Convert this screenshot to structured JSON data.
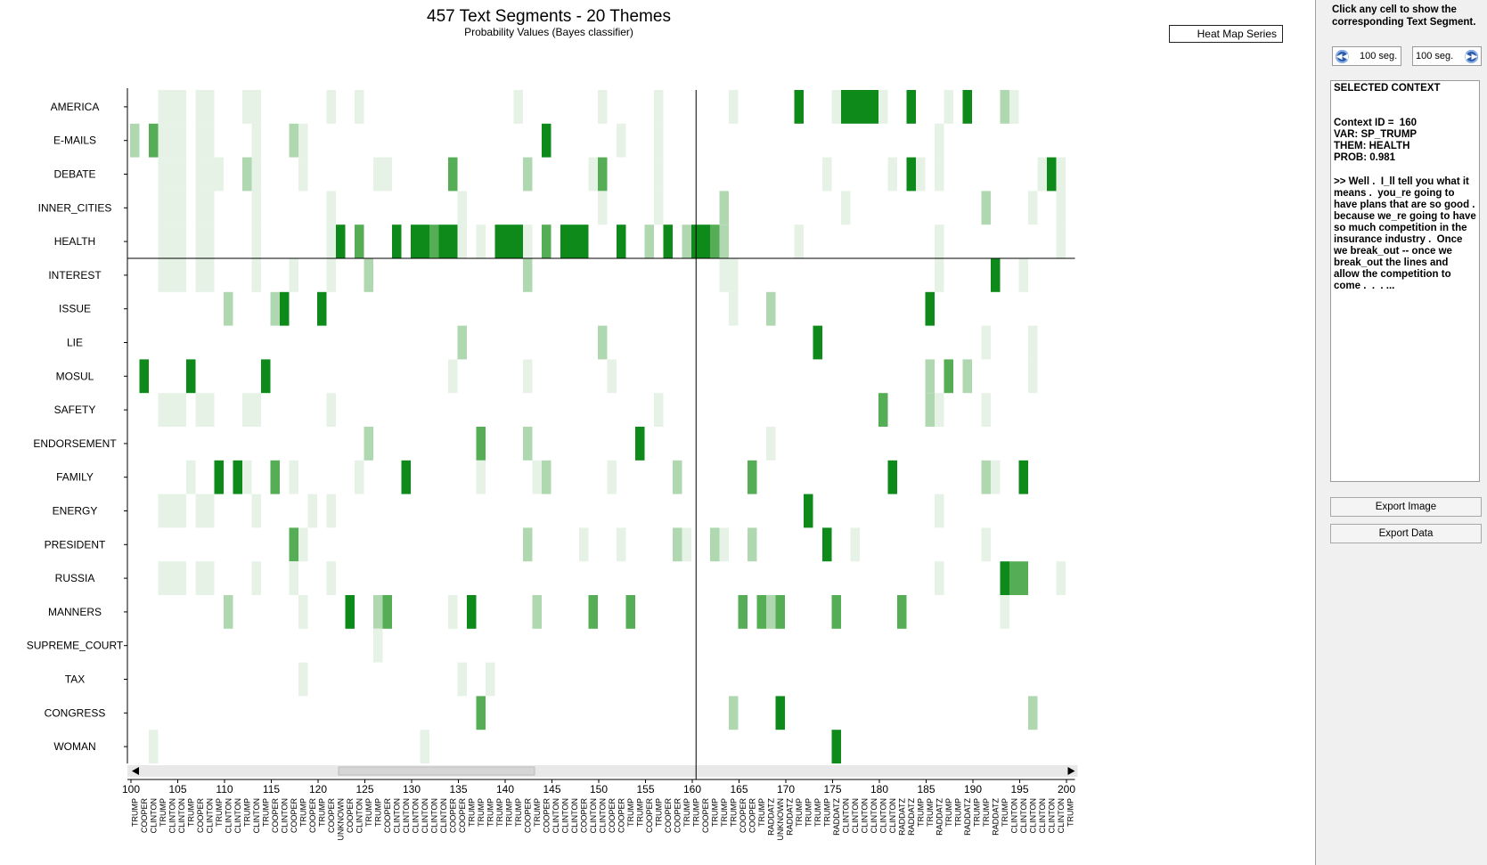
{
  "chart_data": {
    "type": "heatmap",
    "title": "457 Text Segments -  20 Themes",
    "subtitle": "Probability Values (Bayes classifier)",
    "themes": [
      "AMERICA",
      "E-MAILS",
      "DEBATE",
      "INNER_CITIES",
      "HEALTH",
      "INTEREST",
      "ISSUE",
      "LIE",
      "MOSUL",
      "SAFETY",
      "ENDORSEMENT",
      "FAMILY",
      "ENERGY",
      "PRESIDENT",
      "RUSSIA",
      "MANNERS",
      "SUPREME_COURT",
      "TAX",
      "CONGRESS",
      "WOMAN"
    ],
    "x_start": 100,
    "x_end": 200,
    "x_ticks": [
      100,
      105,
      110,
      115,
      120,
      125,
      130,
      135,
      140,
      145,
      150,
      155,
      160,
      165,
      170,
      175,
      180,
      185,
      190,
      195,
      200
    ],
    "speakers": [
      "TRUMP",
      "COOPER",
      "CLINTON",
      "TRUMP",
      "CLINTON",
      "CLINTON",
      "TRUMP",
      "COOPER",
      "CLINTON",
      "TRUMP",
      "CLINTON",
      "CLINTON",
      "TRUMP",
      "CLINTON",
      "TRUMP",
      "COOPER",
      "CLINTON",
      "COOPER",
      "TRUMP",
      "COOPER",
      "TRUMP",
      "COOPER",
      "UNKNOWN",
      "COOPER",
      "CLINTON",
      "TRUMP",
      "TRUMP",
      "COOPER",
      "CLINTON",
      "CLINTON",
      "CLINTON",
      "CLINTON",
      "CLINTON",
      "CLINTON",
      "COOPER",
      "COOPER",
      "TRUMP",
      "TRUMP",
      "TRUMP",
      "TRUMP",
      "TRUMP",
      "TRUMP",
      "COOPER",
      "TRUMP",
      "COOPER",
      "CLINTON",
      "CLINTON",
      "CLINTON",
      "COOPER",
      "CLINTON",
      "CLINTON",
      "COOPER",
      "COOPER",
      "TRUMP",
      "TRUMP",
      "COOPER",
      "TRUMP",
      "COOPER",
      "COOPER",
      "TRUMP",
      "TRUMP",
      "COOPER",
      "TRUMP",
      "TRUMP",
      "TRUMP",
      "COOPER",
      "COOPER",
      "TRUMP",
      "RADDATZ",
      "UNKNOWN",
      "RADDATZ",
      "TRUMP",
      "TRUMP",
      "TRUMP",
      "TRUMP",
      "RADDATZ",
      "CLINTON",
      "CLINTON",
      "CLINTON",
      "CLINTON",
      "CLINTON",
      "CLINTON",
      "RADDATZ",
      "RADDATZ",
      "TRUMP",
      "TRUMP",
      "RADDATZ",
      "TRUMP",
      "TRUMP",
      "RADDATZ",
      "TRUMP",
      "TRUMP",
      "RADDATZ",
      "TRUMP",
      "CLINTON",
      "CLINTON",
      "CLINTON",
      "CLINTON",
      "CLINTON",
      "CLINTON",
      "TRUMP"
    ],
    "selected": {
      "segment": 160,
      "theme": "HEALTH"
    },
    "cells": {
      "AMERICA": [
        [
          103,
          1
        ],
        [
          104,
          1
        ],
        [
          105,
          1
        ],
        [
          107,
          1
        ],
        [
          108,
          1
        ],
        [
          112,
          1
        ],
        [
          113,
          1
        ],
        [
          121,
          1
        ],
        [
          124,
          1
        ],
        [
          141,
          1
        ],
        [
          150,
          1
        ],
        [
          156,
          1
        ],
        [
          164,
          1
        ],
        [
          171,
          4
        ],
        [
          175,
          1
        ],
        [
          176,
          4
        ],
        [
          177,
          4
        ],
        [
          178,
          4
        ],
        [
          179,
          4
        ],
        [
          180,
          1
        ],
        [
          183,
          4
        ],
        [
          187,
          1
        ],
        [
          189,
          4
        ],
        [
          193,
          2
        ],
        [
          194,
          1
        ]
      ],
      "E-MAILS": [
        [
          100,
          2
        ],
        [
          102,
          3
        ],
        [
          103,
          1
        ],
        [
          104,
          1
        ],
        [
          105,
          1
        ],
        [
          107,
          1
        ],
        [
          108,
          1
        ],
        [
          113,
          1
        ],
        [
          117,
          2
        ],
        [
          118,
          1
        ],
        [
          144,
          4
        ],
        [
          152,
          1
        ],
        [
          156,
          1
        ],
        [
          186,
          1
        ]
      ],
      "DEBATE": [
        [
          103,
          1
        ],
        [
          104,
          1
        ],
        [
          105,
          1
        ],
        [
          107,
          1
        ],
        [
          108,
          1
        ],
        [
          109,
          1
        ],
        [
          112,
          2
        ],
        [
          113,
          1
        ],
        [
          118,
          1
        ],
        [
          126,
          1
        ],
        [
          127,
          1
        ],
        [
          134,
          3
        ],
        [
          142,
          2
        ],
        [
          149,
          1
        ],
        [
          150,
          3
        ],
        [
          156,
          1
        ],
        [
          174,
          1
        ],
        [
          181,
          1
        ],
        [
          183,
          4
        ],
        [
          184,
          1
        ],
        [
          186,
          1
        ],
        [
          197,
          1
        ],
        [
          198,
          4
        ],
        [
          199,
          1
        ]
      ],
      "INNER_CITIES": [
        [
          103,
          1
        ],
        [
          104,
          1
        ],
        [
          105,
          1
        ],
        [
          107,
          1
        ],
        [
          108,
          1
        ],
        [
          113,
          1
        ],
        [
          121,
          1
        ],
        [
          135,
          1
        ],
        [
          150,
          1
        ],
        [
          156,
          1
        ],
        [
          163,
          2
        ],
        [
          176,
          1
        ],
        [
          191,
          2
        ],
        [
          196,
          1
        ],
        [
          199,
          1
        ]
      ],
      "HEALTH": [
        [
          103,
          1
        ],
        [
          104,
          1
        ],
        [
          105,
          1
        ],
        [
          107,
          1
        ],
        [
          108,
          1
        ],
        [
          113,
          1
        ],
        [
          121,
          1
        ],
        [
          122,
          4
        ],
        [
          124,
          3
        ],
        [
          128,
          4
        ],
        [
          130,
          4
        ],
        [
          131,
          4
        ],
        [
          132,
          3
        ],
        [
          133,
          4
        ],
        [
          134,
          4
        ],
        [
          135,
          1
        ],
        [
          137,
          1
        ],
        [
          139,
          4
        ],
        [
          140,
          4
        ],
        [
          141,
          4
        ],
        [
          142,
          1
        ],
        [
          144,
          3
        ],
        [
          146,
          4
        ],
        [
          147,
          4
        ],
        [
          148,
          4
        ],
        [
          152,
          4
        ],
        [
          155,
          2
        ],
        [
          157,
          4
        ],
        [
          159,
          2
        ],
        [
          160,
          4
        ],
        [
          161,
          4
        ],
        [
          162,
          3
        ],
        [
          163,
          2
        ],
        [
          171,
          1
        ],
        [
          186,
          1
        ],
        [
          199,
          1
        ]
      ],
      "INTEREST": [
        [
          103,
          1
        ],
        [
          104,
          1
        ],
        [
          105,
          1
        ],
        [
          107,
          1
        ],
        [
          108,
          1
        ],
        [
          113,
          1
        ],
        [
          117,
          1
        ],
        [
          121,
          1
        ],
        [
          125,
          2
        ],
        [
          142,
          2
        ],
        [
          163,
          1
        ],
        [
          164,
          1
        ],
        [
          186,
          1
        ],
        [
          192,
          4
        ],
        [
          195,
          1
        ]
      ],
      "ISSUE": [
        [
          110,
          2
        ],
        [
          115,
          2
        ],
        [
          116,
          4
        ],
        [
          120,
          4
        ],
        [
          164,
          1
        ],
        [
          168,
          2
        ],
        [
          185,
          4
        ]
      ],
      "LIE": [
        [
          135,
          2
        ],
        [
          150,
          2
        ],
        [
          173,
          4
        ],
        [
          191,
          1
        ],
        [
          196,
          1
        ]
      ],
      "MOSUL": [
        [
          101,
          4
        ],
        [
          106,
          4
        ],
        [
          114,
          4
        ],
        [
          134,
          1
        ],
        [
          142,
          1
        ],
        [
          151,
          1
        ],
        [
          185,
          2
        ],
        [
          187,
          3
        ],
        [
          189,
          2
        ],
        [
          196,
          1
        ]
      ],
      "SAFETY": [
        [
          103,
          1
        ],
        [
          104,
          1
        ],
        [
          105,
          1
        ],
        [
          107,
          1
        ],
        [
          108,
          1
        ],
        [
          112,
          1
        ],
        [
          113,
          1
        ],
        [
          121,
          1
        ],
        [
          156,
          1
        ],
        [
          180,
          3
        ],
        [
          185,
          2
        ],
        [
          186,
          1
        ],
        [
          191,
          1
        ]
      ],
      "ENDORSEMENT": [
        [
          125,
          2
        ],
        [
          137,
          3
        ],
        [
          142,
          2
        ],
        [
          154,
          4
        ],
        [
          168,
          1
        ]
      ],
      "FAMILY": [
        [
          106,
          1
        ],
        [
          109,
          4
        ],
        [
          111,
          4
        ],
        [
          112,
          1
        ],
        [
          115,
          3
        ],
        [
          117,
          1
        ],
        [
          124,
          1
        ],
        [
          129,
          4
        ],
        [
          137,
          1
        ],
        [
          143,
          1
        ],
        [
          144,
          2
        ],
        [
          151,
          1
        ],
        [
          158,
          2
        ],
        [
          166,
          3
        ],
        [
          181,
          4
        ],
        [
          191,
          2
        ],
        [
          192,
          1
        ],
        [
          195,
          4
        ]
      ],
      "ENERGY": [
        [
          103,
          1
        ],
        [
          104,
          1
        ],
        [
          105,
          1
        ],
        [
          107,
          1
        ],
        [
          108,
          1
        ],
        [
          113,
          1
        ],
        [
          119,
          1
        ],
        [
          121,
          1
        ],
        [
          172,
          4
        ],
        [
          186,
          1
        ]
      ],
      "PRESIDENT": [
        [
          117,
          3
        ],
        [
          118,
          1
        ],
        [
          142,
          2
        ],
        [
          148,
          1
        ],
        [
          152,
          1
        ],
        [
          158,
          2
        ],
        [
          159,
          1
        ],
        [
          162,
          2
        ],
        [
          163,
          1
        ],
        [
          166,
          2
        ],
        [
          174,
          4
        ],
        [
          177,
          1
        ],
        [
          191,
          1
        ]
      ],
      "RUSSIA": [
        [
          103,
          1
        ],
        [
          104,
          1
        ],
        [
          105,
          1
        ],
        [
          107,
          1
        ],
        [
          108,
          1
        ],
        [
          113,
          1
        ],
        [
          117,
          1
        ],
        [
          121,
          1
        ],
        [
          186,
          1
        ],
        [
          193,
          4
        ],
        [
          194,
          3
        ],
        [
          195,
          3
        ],
        [
          199,
          1
        ]
      ],
      "MANNERS": [
        [
          110,
          2
        ],
        [
          118,
          1
        ],
        [
          123,
          4
        ],
        [
          126,
          2
        ],
        [
          127,
          3
        ],
        [
          134,
          1
        ],
        [
          136,
          4
        ],
        [
          143,
          2
        ],
        [
          149,
          3
        ],
        [
          153,
          3
        ],
        [
          165,
          3
        ],
        [
          167,
          3
        ],
        [
          168,
          2
        ],
        [
          169,
          3
        ],
        [
          175,
          3
        ],
        [
          182,
          3
        ],
        [
          193,
          1
        ]
      ],
      "SUPREME_COURT": [
        [
          126,
          1
        ]
      ],
      "TAX": [
        [
          118,
          1
        ],
        [
          135,
          1
        ],
        [
          138,
          1
        ]
      ],
      "CONGRESS": [
        [
          137,
          3
        ],
        [
          164,
          2
        ],
        [
          169,
          4
        ],
        [
          196,
          2
        ]
      ],
      "WOMAN": [
        [
          102,
          1
        ],
        [
          131,
          1
        ],
        [
          175,
          4
        ]
      ]
    }
  },
  "colors": {
    "level1": "#e6f2e6",
    "level2": "#b0d8b0",
    "level3": "#55ad55",
    "level4": "#0d8a1a"
  },
  "header": {
    "series_button": "Heat Map Series"
  },
  "panel": {
    "hint": "Click any cell to show the corresponding Text Segment.",
    "prev_label": "100 seg.",
    "next_label": "100 seg.",
    "prev_icon": "rewind-icon",
    "next_icon": "fast-forward-icon",
    "context_title": "SELECTED CONTEXT",
    "context_id": "Context ID =  160",
    "context_var": "VAR: SP_TRUMP",
    "context_theme": "THEM: HEALTH",
    "context_prob": "PROB: 0.981",
    "context_text": ">> Well .  I_ll tell you what it means .  you_re going to have plans that are so good .  because we_re going to have so much competition in the insurance industry .  Once we break_out -- once we break_out the lines and allow the competition to come .  .  . ...",
    "export_image": "Export Image",
    "export_data": "Export Data"
  }
}
